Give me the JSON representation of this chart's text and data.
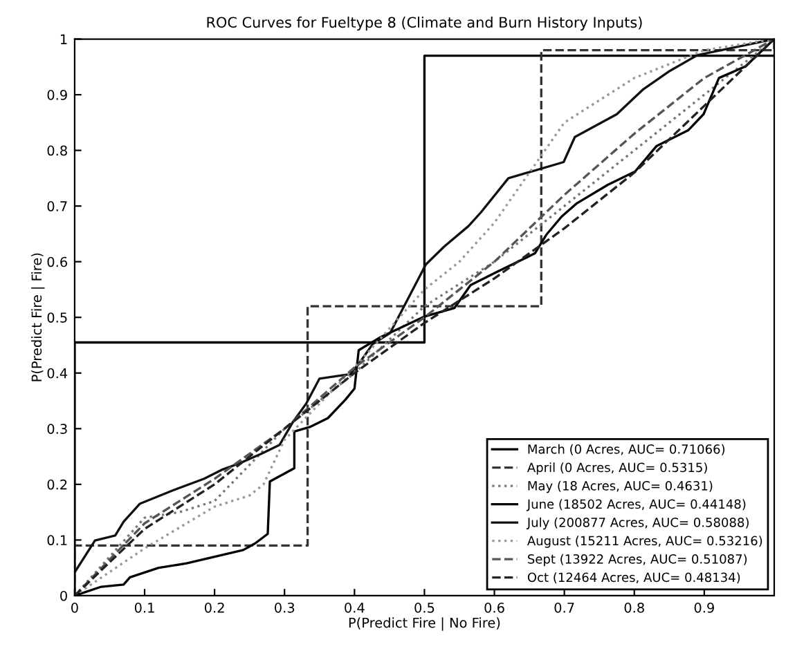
{
  "chart_data": {
    "type": "line",
    "title": "ROC Curves for Fueltype 8 (Climate and Burn History Inputs)",
    "xlabel": "P(Predict Fire | No Fire)",
    "ylabel": "P(Predict Fire | Fire)",
    "xlim": [
      0,
      1
    ],
    "ylim": [
      0,
      1
    ],
    "xticks": [
      0,
      0.1,
      0.2,
      0.3,
      0.4,
      0.5,
      0.6,
      0.7,
      0.8,
      0.9
    ],
    "yticks": [
      0,
      0.1,
      0.2,
      0.3,
      0.4,
      0.5,
      0.6,
      0.7,
      0.8,
      0.9,
      1
    ],
    "grid": false,
    "legend": "bottom right",
    "marker": "none",
    "series": [
      {
        "name": "March (0 Acres, AUC= 0.71066)",
        "color": "#000000",
        "line_style": "solid",
        "x": [
          0,
          0,
          0.5,
          0.5,
          1
        ],
        "values": [
          0,
          0.455,
          0.455,
          0.97,
          0.97
        ]
      },
      {
        "name": "April (0 Acres, AUC= 0.5315)",
        "color": "#333333",
        "line_style": "dashed",
        "x": [
          0,
          0,
          0.333,
          0.333,
          0.667,
          0.667,
          1,
          1
        ],
        "values": [
          0,
          0.09,
          0.09,
          0.52,
          0.52,
          0.98,
          0.98,
          1
        ]
      },
      {
        "name": "May (18 Acres, AUC= 0.4631)",
        "color": "#777777",
        "line_style": "dotted",
        "x": [
          0,
          0.1,
          0.15,
          0.2,
          0.3,
          0.4,
          0.5,
          0.6,
          0.7,
          0.8,
          0.9,
          1
        ],
        "values": [
          0,
          0.14,
          0.15,
          0.17,
          0.3,
          0.4,
          0.52,
          0.6,
          0.7,
          0.8,
          0.9,
          1
        ]
      },
      {
        "name": "June (18502 Acres, AUC= 0.44148)",
        "color": "#000000",
        "line_style": "solid",
        "x": [
          0,
          0.038,
          0.07,
          0.079,
          0.12,
          0.16,
          0.2,
          0.241,
          0.258,
          0.276,
          0.279,
          0.314,
          0.314,
          0.336,
          0.362,
          0.387,
          0.4,
          0.406,
          0.438,
          0.499,
          0.543,
          0.566,
          0.604,
          0.658,
          0.674,
          0.696,
          0.718,
          0.762,
          0.801,
          0.832,
          0.877,
          0.899,
          0.921,
          0.959,
          1
        ],
        "values": [
          0,
          0.016,
          0.02,
          0.033,
          0.05,
          0.058,
          0.07,
          0.082,
          0.094,
          0.111,
          0.205,
          0.229,
          0.295,
          0.303,
          0.319,
          0.352,
          0.372,
          0.441,
          0.465,
          0.501,
          0.517,
          0.558,
          0.582,
          0.615,
          0.648,
          0.681,
          0.705,
          0.738,
          0.762,
          0.808,
          0.836,
          0.865,
          0.93,
          0.951,
          1
        ]
      },
      {
        "name": "July (200877 Acres, AUC= 0.58088)",
        "color": "#111111",
        "line_style": "solid",
        "x": [
          0,
          0.029,
          0.058,
          0.07,
          0.093,
          0.14,
          0.185,
          0.21,
          0.236,
          0.267,
          0.293,
          0.312,
          0.331,
          0.35,
          0.394,
          0.407,
          0.426,
          0.451,
          0.502,
          0.528,
          0.563,
          0.581,
          0.62,
          0.699,
          0.715,
          0.775,
          0.813,
          0.851,
          0.89,
          1
        ],
        "values": [
          0.042,
          0.099,
          0.108,
          0.133,
          0.165,
          0.189,
          0.21,
          0.226,
          0.238,
          0.255,
          0.271,
          0.312,
          0.345,
          0.39,
          0.398,
          0.418,
          0.452,
          0.472,
          0.595,
          0.627,
          0.664,
          0.689,
          0.75,
          0.779,
          0.824,
          0.865,
          0.91,
          0.943,
          0.971,
          1
        ]
      },
      {
        "name": "August (15211 Acres, AUC= 0.53216)",
        "color": "#999999",
        "line_style": "dotted",
        "x": [
          0,
          0.1,
          0.2,
          0.25,
          0.27,
          0.3,
          0.4,
          0.5,
          0.55,
          0.6,
          0.65,
          0.7,
          0.8,
          0.9,
          1
        ],
        "values": [
          0,
          0.085,
          0.16,
          0.18,
          0.2,
          0.28,
          0.41,
          0.55,
          0.6,
          0.67,
          0.76,
          0.85,
          0.93,
          0.98,
          1
        ]
      },
      {
        "name": "Sept (13922 Acres, AUC= 0.51087)",
        "color": "#555555",
        "line_style": "dashed",
        "x": [
          0,
          0.1,
          0.2,
          0.3,
          0.4,
          0.5,
          0.6,
          0.7,
          0.8,
          0.9,
          1
        ],
        "values": [
          0,
          0.13,
          0.21,
          0.3,
          0.41,
          0.5,
          0.6,
          0.72,
          0.83,
          0.93,
          1
        ]
      },
      {
        "name": "Oct (12464 Acres, AUC= 0.48134)",
        "color": "#222222",
        "line_style": "dashed",
        "x": [
          0,
          0.1,
          0.2,
          0.3,
          0.4,
          0.5,
          0.6,
          0.7,
          0.8,
          0.9,
          1
        ],
        "values": [
          0,
          0.12,
          0.2,
          0.3,
          0.4,
          0.49,
          0.57,
          0.66,
          0.76,
          0.88,
          1
        ]
      }
    ]
  }
}
